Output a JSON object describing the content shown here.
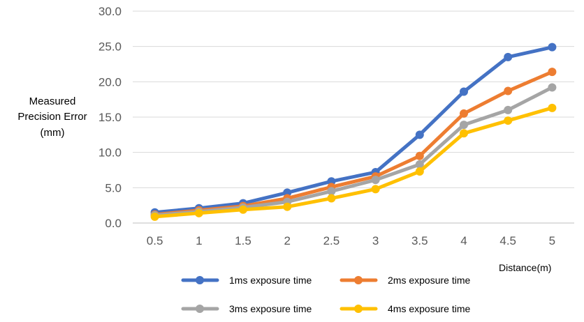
{
  "chart_data": {
    "type": "line",
    "ylabel_lines": [
      "Measured",
      "Precision Error",
      "(mm)"
    ],
    "xlabel": "Distance(m)",
    "categories": [
      "0.5",
      "1",
      "1.5",
      "2",
      "2.5",
      "3",
      "3.5",
      "4",
      "4.5",
      "5"
    ],
    "ylim": [
      0,
      30
    ],
    "yticks": [
      "0.0",
      "5.0",
      "10.0",
      "15.0",
      "20.0",
      "25.0",
      "30.0"
    ],
    "grid": true,
    "legend_position": "bottom",
    "series": [
      {
        "name": "1ms exposure time",
        "color": "#4472C4",
        "values": [
          1.5,
          2.1,
          2.8,
          4.3,
          5.9,
          7.2,
          12.5,
          18.6,
          23.5,
          24.9
        ]
      },
      {
        "name": "2ms exposure time",
        "color": "#ED7D31",
        "values": [
          1.2,
          1.8,
          2.4,
          3.5,
          5.1,
          6.6,
          9.5,
          15.5,
          18.7,
          21.4
        ]
      },
      {
        "name": "3ms exposure time",
        "color": "#A5A5A5",
        "values": [
          1.1,
          1.6,
          2.2,
          3.0,
          4.5,
          6.1,
          8.3,
          13.9,
          16.0,
          19.2
        ]
      },
      {
        "name": "4ms exposure time",
        "color": "#FFC000",
        "values": [
          0.9,
          1.4,
          1.9,
          2.3,
          3.5,
          4.8,
          7.3,
          12.7,
          14.5,
          16.3
        ]
      }
    ]
  }
}
